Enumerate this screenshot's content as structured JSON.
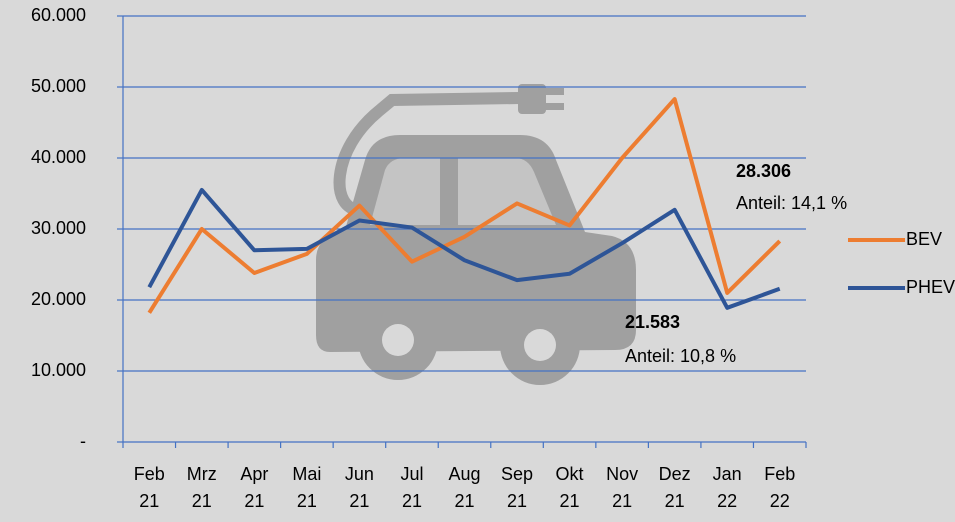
{
  "chart_data": {
    "type": "line",
    "categories": [
      "Feb 21",
      "Mrz 21",
      "Apr 21",
      "Mai 21",
      "Jun 21",
      "Jul 21",
      "Aug 21",
      "Sep 21",
      "Okt 21",
      "Nov 21",
      "Dez 21",
      "Jan 22",
      "Feb 22"
    ],
    "series": [
      {
        "name": "BEV",
        "color": "#ed7d31",
        "values": [
          18200,
          30000,
          23800,
          26500,
          33300,
          25400,
          28900,
          33600,
          30500,
          40000,
          48300,
          21000,
          28306
        ]
      },
      {
        "name": "PHEV",
        "color": "#2e5597",
        "values": [
          21800,
          35500,
          27000,
          27200,
          31200,
          30200,
          25600,
          22800,
          23700,
          28000,
          32700,
          18900,
          21583
        ]
      }
    ],
    "ylim": [
      0,
      60000
    ],
    "yticks": [
      {
        "value": 0,
        "label": "-"
      },
      {
        "value": 10000,
        "label": "10.000"
      },
      {
        "value": 20000,
        "label": "20.000"
      },
      {
        "value": 30000,
        "label": "30.000"
      },
      {
        "value": 40000,
        "label": "40.000"
      },
      {
        "value": 50000,
        "label": "50.000"
      },
      {
        "value": 60000,
        "label": "60.000"
      }
    ],
    "annotations": [
      "28.306",
      "Anteil: 14,1 %",
      "21.583",
      "Anteil: 10,8 %"
    ],
    "grid": true,
    "legend_position": "right"
  }
}
